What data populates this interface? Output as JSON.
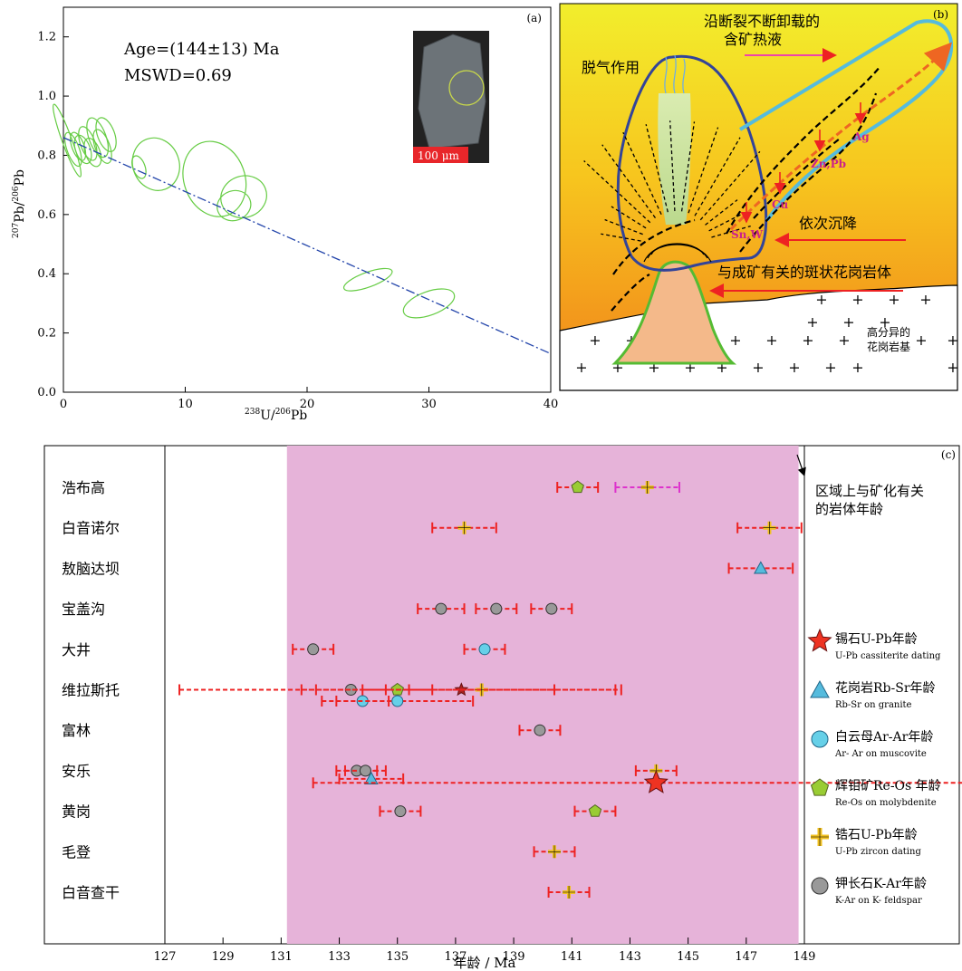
{
  "panel_a": {
    "label": "(a)",
    "age_text": "Age=(144±13) Ma",
    "mswd_text": "MSWD=0.69",
    "scale_bar": "100 μm",
    "xlabel_sup": "238",
    "xlabel_main": "U/",
    "xlabel_sup2": "206",
    "xlabel_end": "Pb",
    "ylabel_sup": "207",
    "ylabel_main": "Pb/",
    "ylabel_sup2": "206",
    "ylabel_end": "Pb",
    "colors": {
      "ellipse": "#66cc44",
      "line": "#2244aa"
    }
  },
  "panel_b": {
    "label": "(b)",
    "text_fault": "沿断裂不断卸载的",
    "text_fluid": "含矿热液",
    "text_degas": "脱气作用",
    "text_settle": "依次沉降",
    "text_porphyry": "与成矿有关的斑状花岗岩体",
    "text_batholith1": "高分异的",
    "text_batholith2": "花岗岩基",
    "metals": [
      "Ag",
      "Zn,Pb",
      "Cu",
      "Sn,W"
    ],
    "colors": {
      "outline": "#334499",
      "vein": "#55bbdd",
      "arrow": "#ee2222",
      "intrusion": "#f4b98a"
    }
  },
  "chart_data": [
    {
      "type": "scatter",
      "title": "",
      "xlabel": "238U/206Pb",
      "ylabel": "207Pb/206Pb",
      "xlim": [
        0,
        40
      ],
      "ylim": [
        0,
        1.3
      ],
      "xticks": [
        "0",
        "10",
        "20",
        "30",
        "40"
      ],
      "yticks": [
        "0.0",
        "0.2",
        "0.4",
        "0.6",
        "0.8",
        "1.0",
        "1.2"
      ],
      "discordia": {
        "intercept_y": 0.86,
        "x_end": 40,
        "y_end": 0.13
      },
      "ellipses": [
        {
          "x": 0.3,
          "y": 0.85,
          "rx": 0.4,
          "ry": 0.13
        },
        {
          "x": 0.8,
          "y": 0.82,
          "rx": 0.5,
          "ry": 0.06
        },
        {
          "x": 1.2,
          "y": 0.83,
          "rx": 0.5,
          "ry": 0.05
        },
        {
          "x": 1.6,
          "y": 0.82,
          "rx": 0.6,
          "ry": 0.05
        },
        {
          "x": 2.0,
          "y": 0.84,
          "rx": 0.6,
          "ry": 0.06
        },
        {
          "x": 2.4,
          "y": 0.81,
          "rx": 0.6,
          "ry": 0.05
        },
        {
          "x": 2.8,
          "y": 0.86,
          "rx": 0.7,
          "ry": 0.07
        },
        {
          "x": 3.2,
          "y": 0.83,
          "rx": 0.6,
          "ry": 0.06
        },
        {
          "x": 3.5,
          "y": 0.87,
          "rx": 0.7,
          "ry": 0.06
        },
        {
          "x": 6.2,
          "y": 0.76,
          "rx": 0.5,
          "ry": 0.04
        },
        {
          "x": 7.6,
          "y": 0.77,
          "rx": 1.9,
          "ry": 0.09
        },
        {
          "x": 12.4,
          "y": 0.72,
          "rx": 2.5,
          "ry": 0.13
        },
        {
          "x": 14.0,
          "y": 0.63,
          "rx": 1.4,
          "ry": 0.05
        },
        {
          "x": 14.8,
          "y": 0.66,
          "rx": 1.9,
          "ry": 0.07
        },
        {
          "x": 25.0,
          "y": 0.38,
          "rx": 2.1,
          "ry": 0.025
        },
        {
          "x": 30.0,
          "y": 0.3,
          "rx": 2.2,
          "ry": 0.04
        }
      ]
    },
    {
      "type": "scatter",
      "title": "",
      "xlabel": "年龄 / Ma",
      "xlim": [
        127,
        149
      ],
      "xticks": [
        "127",
        "129",
        "131",
        "133",
        "135",
        "137",
        "139",
        "141",
        "143",
        "145",
        "147",
        "149"
      ],
      "shaded_range": [
        131.2,
        148.8
      ],
      "categories": [
        "浩布高",
        "白音诺尔",
        "敖脑达坝",
        "宝盖沟",
        "大井",
        "维拉斯托",
        "富林",
        "安乐",
        "黄岗",
        "毛登",
        "白音查干"
      ],
      "points": [
        {
          "row": 0,
          "x": 141.2,
          "err": 0.7,
          "sym": "pentagon"
        },
        {
          "row": 0,
          "x": 143.6,
          "err": 1.1,
          "sym": "cross",
          "err_color": "magenta"
        },
        {
          "row": 1,
          "x": 137.3,
          "err": 1.1,
          "sym": "cross"
        },
        {
          "row": 1,
          "x": 147.8,
          "err": 1.1,
          "sym": "cross"
        },
        {
          "row": 2,
          "x": 147.5,
          "err": 1.1,
          "sym": "triangle"
        },
        {
          "row": 3,
          "x": 136.5,
          "err": 0.8,
          "sym": "circle_gray"
        },
        {
          "row": 3,
          "x": 138.4,
          "err": 0.7,
          "sym": "circle_gray"
        },
        {
          "row": 3,
          "x": 140.3,
          "err": 0.7,
          "sym": "circle_gray"
        },
        {
          "row": 4,
          "x": 132.1,
          "err": 0.7,
          "sym": "circle_gray"
        },
        {
          "row": 4,
          "x": 138.0,
          "err": 0.7,
          "sym": "circle_cyan"
        },
        {
          "row": 5,
          "x": 133.4,
          "err": 1.2,
          "sym": "circle_gray"
        },
        {
          "row": 5,
          "x": 135.0,
          "err": 1.2,
          "sym": "pentagon"
        },
        {
          "row": 5,
          "x": 137.2,
          "err": 5.5,
          "sym": "star_small"
        },
        {
          "row": 5,
          "x": 137.9,
          "err": 2.5,
          "sym": "cross"
        },
        {
          "row": 5,
          "x": 135.0,
          "err": 7.5,
          "sym": "none"
        },
        {
          "row": 5.28,
          "x": 133.8,
          "err": 0.9,
          "sym": "circle_cyan"
        },
        {
          "row": 5.28,
          "x": 135.0,
          "err": 2.6,
          "sym": "circle_cyan"
        },
        {
          "row": 6,
          "x": 139.9,
          "err": 0.7,
          "sym": "circle_gray"
        },
        {
          "row": 7,
          "x": 133.6,
          "err": 0.7,
          "sym": "circle_gray"
        },
        {
          "row": 7,
          "x": 133.9,
          "err": 0.7,
          "sym": "circle_gray"
        },
        {
          "row": 7,
          "x": 143.9,
          "err": 0.7,
          "sym": "cross"
        },
        {
          "row": 7.2,
          "x": 134.1,
          "err": 1.1,
          "sym": "triangle"
        },
        {
          "row": 7.3,
          "x": 143.9,
          "err": 11.8,
          "sym": "star_big"
        },
        {
          "row": 8,
          "x": 135.1,
          "err": 0.7,
          "sym": "circle_gray"
        },
        {
          "row": 8,
          "x": 141.8,
          "err": 0.7,
          "sym": "pentagon"
        },
        {
          "row": 9,
          "x": 140.4,
          "err": 0.7,
          "sym": "cross"
        },
        {
          "row": 10,
          "x": 140.9,
          "err": 0.7,
          "sym": "cross"
        }
      ]
    }
  ],
  "panel_c": {
    "label": "(c)",
    "annotation_line1": "区域上与矿化有关",
    "annotation_line2": "的岩体年龄",
    "legend": [
      {
        "sym": "star_big",
        "cn": "锡石U-Pb年龄",
        "en": "U-Pb cassiterite dating"
      },
      {
        "sym": "triangle",
        "cn": "花岗岩Rb-Sr年龄",
        "en": "Rb-Sr on granite"
      },
      {
        "sym": "circle_cyan",
        "cn": "白云母Ar-Ar年龄",
        "en": "Ar-  Ar on muscovite"
      },
      {
        "sym": "pentagon",
        "cn": "辉钼矿Re-Os 年龄",
        "en": "Re-Os on molybdenite"
      },
      {
        "sym": "cross",
        "cn": "锆石U-Pb年龄",
        "en": "U-Pb zircon dating"
      },
      {
        "sym": "circle_gray",
        "cn": "钾长石K-Ar年龄",
        "en": "K-Ar on K- feldspar"
      }
    ],
    "colors": {
      "shade": "#e6b3d9",
      "error_bar": "#ee2222",
      "error_bar_alt": "#dd33cc"
    }
  }
}
